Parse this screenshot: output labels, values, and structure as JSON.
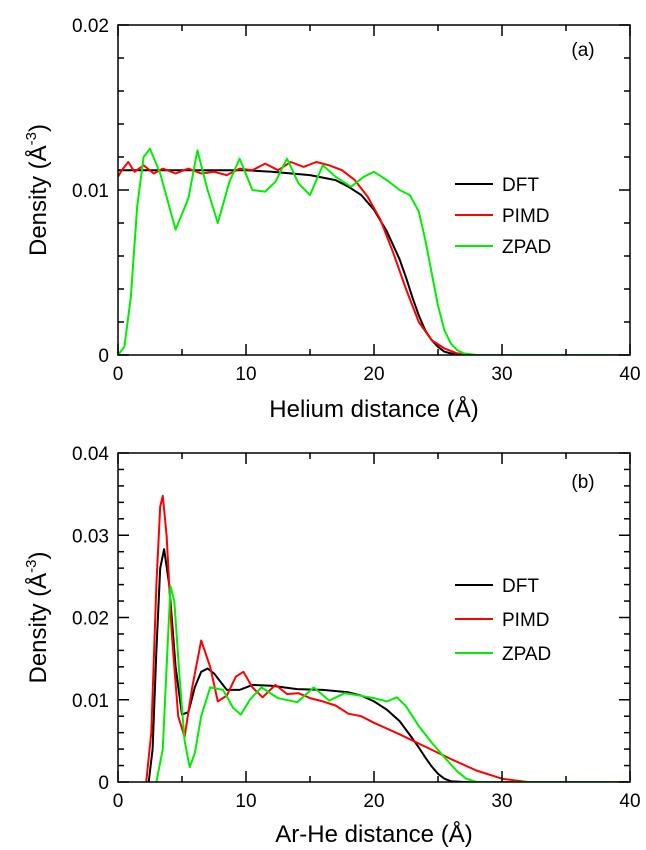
{
  "chart_data": [
    {
      "type": "line",
      "panel_label": "(a)",
      "xlabel": "Helium distance (Å)",
      "ylabel": "Density (Å",
      "ylabel_exp": "-3",
      "ylabel_close": ")",
      "xlim": [
        0,
        40
      ],
      "ylim": [
        0,
        0.02
      ],
      "xticks": [
        0,
        10,
        20,
        30,
        40
      ],
      "xtick_labels": [
        "0",
        "10",
        "20",
        "30",
        "40"
      ],
      "yticks": [
        0,
        0.01,
        0.02
      ],
      "ytick_labels": [
        "0",
        "0.01",
        "0.02"
      ],
      "grid": false,
      "legend_position": "right",
      "series": [
        {
          "name": "DFT",
          "color": "#000000",
          "x": [
            0,
            2,
            5,
            10,
            12,
            15,
            17,
            18,
            19,
            20,
            21,
            22,
            22.5,
            23,
            23.5,
            24,
            24.5,
            25,
            25.5,
            26,
            27,
            30,
            40
          ],
          "y": [
            0.0112,
            0.0112,
            0.0112,
            0.0112,
            0.0111,
            0.0109,
            0.0106,
            0.0102,
            0.0097,
            0.0088,
            0.0075,
            0.0058,
            0.0047,
            0.0035,
            0.0024,
            0.0015,
            0.0009,
            0.0005,
            0.0002,
            0.0001,
            0,
            0,
            0
          ]
        },
        {
          "name": "PIMD",
          "color": "#ff0000",
          "x": [
            0,
            0.3,
            0.8,
            1.3,
            2,
            2.8,
            3.5,
            4.5,
            5.5,
            6.5,
            7.5,
            8.5,
            9.5,
            10.5,
            11.5,
            12.5,
            13.5,
            14.5,
            15.5,
            16.5,
            17.5,
            18.5,
            19.5,
            20.5,
            21.5,
            22.5,
            23.5,
            24.5,
            25.5,
            26.5,
            27.5,
            30,
            40
          ],
          "y": [
            0.0108,
            0.0112,
            0.0117,
            0.0111,
            0.0115,
            0.011,
            0.0113,
            0.011,
            0.0113,
            0.011,
            0.0111,
            0.0109,
            0.0113,
            0.0112,
            0.0116,
            0.0112,
            0.0117,
            0.0114,
            0.0117,
            0.0115,
            0.0112,
            0.0106,
            0.0096,
            0.0082,
            0.0062,
            0.004,
            0.002,
            0.0009,
            0.0004,
            0.0001,
            0,
            0,
            0
          ]
        },
        {
          "name": "ZPAD",
          "color": "#00ee00",
          "x": [
            0,
            0.5,
            1,
            1.5,
            2,
            2.5,
            3.3,
            4.5,
            5.5,
            6.2,
            7,
            7.8,
            8.7,
            9.5,
            10.5,
            11.5,
            12.3,
            13.2,
            14.1,
            15,
            16,
            17,
            18.2,
            19.2,
            20,
            21,
            22,
            22.8,
            23.5,
            24,
            24.5,
            25,
            25.5,
            26,
            26.5,
            27,
            28,
            30,
            40
          ],
          "y": [
            0,
            0.0005,
            0.0035,
            0.009,
            0.012,
            0.0125,
            0.011,
            0.0076,
            0.0095,
            0.0124,
            0.01,
            0.008,
            0.0105,
            0.0119,
            0.01,
            0.0099,
            0.0105,
            0.0119,
            0.0104,
            0.0097,
            0.0115,
            0.0108,
            0.0102,
            0.0108,
            0.0111,
            0.0106,
            0.01,
            0.0097,
            0.0087,
            0.007,
            0.005,
            0.003,
            0.0015,
            0.0007,
            0.0003,
            0.0001,
            0,
            0,
            0
          ]
        }
      ]
    },
    {
      "type": "line",
      "panel_label": "(b)",
      "xlabel": "Ar-He distance (Å)",
      "ylabel": "Density (Å",
      "ylabel_exp": "-3",
      "ylabel_close": ")",
      "xlim": [
        0,
        40
      ],
      "ylim": [
        0,
        0.04
      ],
      "xticks": [
        0,
        10,
        20,
        30,
        40
      ],
      "xtick_labels": [
        "0",
        "10",
        "20",
        "30",
        "40"
      ],
      "yticks": [
        0,
        0.01,
        0.02,
        0.03,
        0.04
      ],
      "ytick_labels": [
        "0",
        "0.01",
        "0.02",
        "0.03",
        "0.04"
      ],
      "grid": false,
      "legend_position": "right",
      "series": [
        {
          "name": "DFT",
          "color": "#000000",
          "x": [
            2.4,
            2.7,
            3.0,
            3.3,
            3.6,
            4.0,
            4.5,
            5.0,
            5.5,
            6.0,
            6.5,
            7.0,
            7.5,
            8.5,
            9.5,
            10.5,
            12,
            14,
            16,
            18,
            19,
            20,
            21,
            22,
            23,
            23.5,
            24,
            24.5,
            25,
            25.5,
            26,
            27,
            40
          ],
          "y": [
            0,
            0.004,
            0.016,
            0.026,
            0.0283,
            0.024,
            0.014,
            0.0082,
            0.0085,
            0.0115,
            0.0134,
            0.0138,
            0.0132,
            0.0112,
            0.0112,
            0.0118,
            0.0117,
            0.0113,
            0.0112,
            0.0109,
            0.0105,
            0.0098,
            0.0088,
            0.0074,
            0.0053,
            0.0042,
            0.003,
            0.0019,
            0.001,
            0.0004,
            0.0001,
            0,
            0
          ]
        },
        {
          "name": "PIMD",
          "color": "#ff0000",
          "x": [
            2.2,
            2.6,
            3.0,
            3.3,
            3.5,
            3.8,
            4.2,
            4.7,
            5.2,
            5.8,
            6.5,
            7.2,
            7.8,
            8.5,
            9.2,
            9.8,
            10.5,
            11.3,
            12.3,
            13.2,
            14.1,
            15,
            16,
            17,
            18,
            19,
            20,
            22,
            24,
            26,
            28,
            30,
            31.5,
            32,
            40
          ],
          "y": [
            0,
            0.006,
            0.024,
            0.0335,
            0.0348,
            0.03,
            0.018,
            0.008,
            0.0055,
            0.0115,
            0.0172,
            0.014,
            0.0098,
            0.0105,
            0.0128,
            0.0134,
            0.0115,
            0.0103,
            0.0118,
            0.0107,
            0.0108,
            0.0102,
            0.0098,
            0.0093,
            0.0083,
            0.008,
            0.0072,
            0.0058,
            0.0043,
            0.0028,
            0.0014,
            0.0004,
            0.0001,
            0,
            0
          ]
        },
        {
          "name": "ZPAD",
          "color": "#00ee00",
          "x": [
            3.0,
            3.5,
            3.8,
            4.1,
            4.4,
            4.8,
            5.2,
            5.6,
            6.0,
            6.5,
            7.2,
            8.2,
            9.0,
            9.6,
            10.3,
            11.2,
            12.5,
            14,
            15.3,
            16.5,
            17.7,
            18.5,
            20,
            21,
            21.8,
            22.5,
            23.5,
            24.5,
            25.5,
            26.5,
            27.2,
            28,
            40
          ],
          "y": [
            0,
            0.004,
            0.014,
            0.0238,
            0.022,
            0.013,
            0.005,
            0.0018,
            0.0035,
            0.008,
            0.0115,
            0.0112,
            0.009,
            0.0082,
            0.01,
            0.0115,
            0.0102,
            0.0097,
            0.0115,
            0.0099,
            0.0108,
            0.0106,
            0.0102,
            0.0098,
            0.0103,
            0.0092,
            0.0068,
            0.0048,
            0.003,
            0.0013,
            0.0004,
            0,
            0
          ]
        }
      ]
    }
  ]
}
